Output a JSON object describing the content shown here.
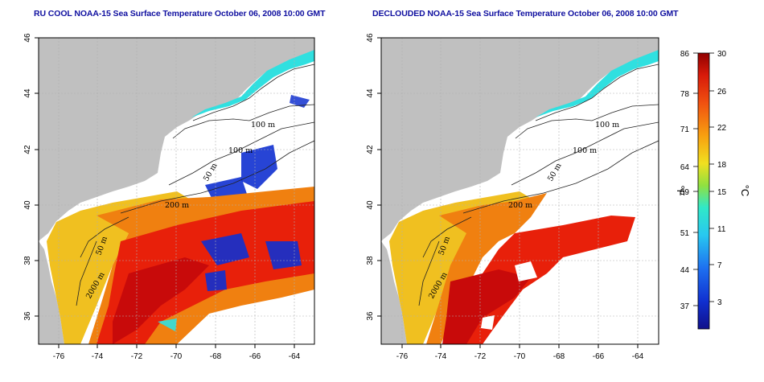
{
  "titles": {
    "left": "RU COOL NOAA-15 Sea Surface Temperature October 06, 2008 10:00 GMT",
    "right": "DECLOUDED NOAA-15 Sea Surface Temperature October 06, 2008 10:00 GMT"
  },
  "axes": {
    "x_ticks": [
      "-76",
      "-74",
      "-72",
      "-70",
      "-68",
      "-66",
      "-64"
    ],
    "y_ticks": [
      "36",
      "38",
      "40",
      "42",
      "44",
      "46"
    ]
  },
  "contour_labels": {
    "depth_100_north": "100 m",
    "depth_100_mid": "100 m",
    "depth_50": "50 m",
    "depth_200": "200 m",
    "depth_50_south": "50 m",
    "depth_2000": "2000 m"
  },
  "colorbar": {
    "f_ticks": [
      "86",
      "78",
      "71",
      "64",
      "59",
      "51",
      "44",
      "37"
    ],
    "c_ticks": [
      "30",
      "26",
      "22",
      "18",
      "15",
      "11",
      "7",
      "3"
    ],
    "f_unit": "°F",
    "c_unit": "°C"
  },
  "colors": {
    "land": "#c0c0c0",
    "title": "#1010a0",
    "water_warm": "#e8200a",
    "water_hot": "#c80a0a",
    "water_mild": "#f08010",
    "water_shelf": "#f0c020",
    "water_cool": "#30e0e0",
    "cloud_blue": "#1030d0"
  }
}
